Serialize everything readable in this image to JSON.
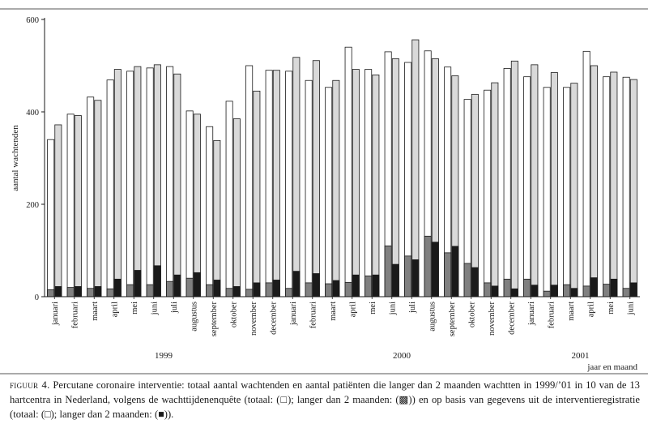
{
  "chart_data": {
    "type": "bar",
    "ylabel": "aantal wachtenden",
    "xlabel": "jaar en maand",
    "ylim": [
      0,
      600
    ],
    "yticks": [
      0,
      200,
      400,
      600
    ],
    "grid": false,
    "categories": [
      "januari",
      "februari",
      "maart",
      "april",
      "mei",
      "juni",
      "juli",
      "augustus",
      "september",
      "oktober",
      "november",
      "december",
      "januari",
      "februari",
      "maart",
      "april",
      "mei",
      "juni",
      "juli",
      "augustus",
      "september",
      "oktober",
      "november",
      "december",
      "januari",
      "februari",
      "maart",
      "april",
      "mei",
      "juni"
    ],
    "years": [
      {
        "label": "1999",
        "start": 0,
        "end": 11
      },
      {
        "label": "2000",
        "start": 12,
        "end": 23
      },
      {
        "label": "2001",
        "start": 24,
        "end": 29
      }
    ],
    "series": [
      {
        "name": "wachttijdenenquête totaal",
        "group": "enquete",
        "role": "total",
        "color": "#ffffff",
        "values": [
          340,
          395,
          432,
          469,
          488,
          495,
          498,
          402,
          368,
          423,
          500,
          490,
          488,
          468,
          453,
          540,
          492,
          530,
          507,
          532,
          497,
          427,
          447,
          494,
          476,
          453,
          453,
          531,
          476,
          475
        ]
      },
      {
        "name": "wachttijdenenquête langer dan 2 maanden",
        "group": "enquete",
        "role": "part",
        "color": "#808080",
        "values": [
          15,
          20,
          18,
          17,
          26,
          26,
          33,
          40,
          26,
          18,
          16,
          30,
          18,
          30,
          28,
          31,
          45,
          110,
          88,
          131,
          95,
          72,
          30,
          38,
          38,
          12,
          26,
          23,
          27,
          18
        ]
      },
      {
        "name": "interventieregistratie totaal",
        "group": "register",
        "role": "total",
        "color": "#d9d9d9",
        "values": [
          372,
          392,
          425,
          492,
          498,
          502,
          482,
          395,
          338,
          385,
          445,
          490,
          518,
          511,
          468,
          492,
          480,
          515,
          556,
          515,
          478,
          438,
          463,
          510,
          502,
          485,
          462,
          500,
          486,
          470
        ]
      },
      {
        "name": "interventieregistratie langer dan 2 maanden",
        "group": "register",
        "role": "part",
        "color": "#1a1a1a",
        "values": [
          22,
          22,
          22,
          38,
          57,
          67,
          47,
          52,
          36,
          22,
          30,
          36,
          55,
          50,
          35,
          47,
          47,
          70,
          80,
          118,
          109,
          63,
          23,
          17,
          25,
          25,
          18,
          41,
          38,
          30
        ]
      }
    ]
  },
  "caption": {
    "label": "figuur 4.",
    "text": "Percutane coronaire interventie: totaal aantal wachtenden en aantal patiënten die langer dan 2 maanden wachtten in 1999/’01 in 10 van de 13 hartcentra in Nederland, volgens de wachttijdenenquête (totaal: (□); langer dan 2 maanden: (▩)) en op basis van gegevens uit de interventieregistratie (totaal: (□); langer dan 2 maanden: (■))."
  },
  "colors": {
    "ink": "#1a1a1a",
    "rule": "#555555",
    "enquete_total": "#ffffff",
    "enquete_part": "#808080",
    "register_total": "#d9d9d9",
    "register_part": "#1a1a1a"
  }
}
